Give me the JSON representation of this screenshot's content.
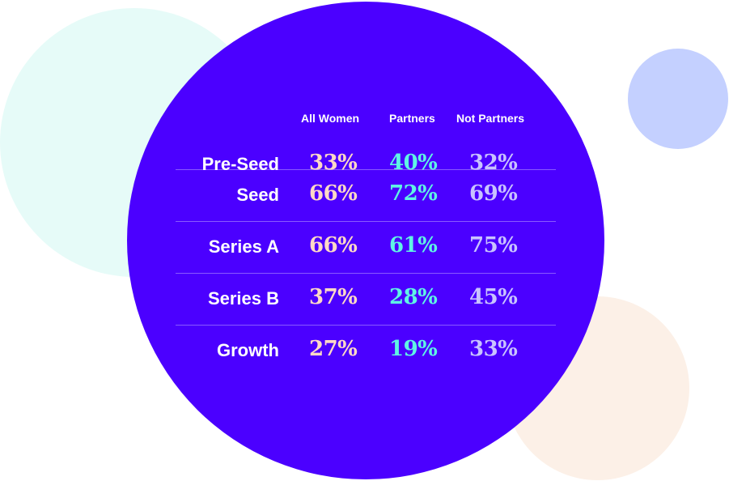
{
  "colors": {
    "background": "#ffffff",
    "main_circle": "#4b00ff",
    "teal_circle": "#e6fbf8",
    "blue_circle": "#c4d0ff",
    "peach_circle": "#fcf0e7",
    "all_women_text": "#ffd9c6",
    "partners_text": "#5ff5e4",
    "not_partners_text": "#c9c3ff",
    "label_text": "#ffffff"
  },
  "chart_data": {
    "type": "table",
    "columns": [
      "All Women",
      "Partners",
      "Not Partners"
    ],
    "rows": [
      {
        "stage": "Pre-Seed",
        "all_women": "33%",
        "partners": "40%",
        "not_partners": "32%"
      },
      {
        "stage": "Seed",
        "all_women": "66%",
        "partners": "72%",
        "not_partners": "69%"
      },
      {
        "stage": "Series A",
        "all_women": "66%",
        "partners": "61%",
        "not_partners": "75%"
      },
      {
        "stage": "Series B",
        "all_women": "37%",
        "partners": "28%",
        "not_partners": "45%"
      },
      {
        "stage": "Growth",
        "all_women": "27%",
        "partners": "19%",
        "not_partners": "33%"
      }
    ]
  }
}
